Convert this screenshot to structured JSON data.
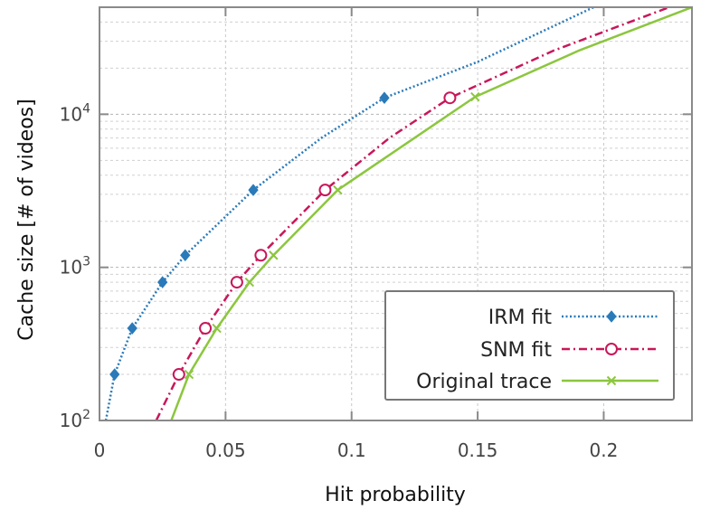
{
  "chart_data": {
    "type": "line",
    "xlabel": "Hit probability",
    "ylabel": "Cache size [# of videos]",
    "xlim": [
      0,
      0.235
    ],
    "ylim": [
      100,
      50000
    ],
    "yscale": "log",
    "grid": true,
    "legend_position": "bottom-right",
    "x_ticks": [
      {
        "value": 0,
        "label": "0"
      },
      {
        "value": 0.05,
        "label": "0.05"
      },
      {
        "value": 0.1,
        "label": "0.1"
      },
      {
        "value": 0.15,
        "label": "0.15"
      },
      {
        "value": 0.2,
        "label": "0.2"
      }
    ],
    "y_ticks": [
      {
        "value": 100,
        "base": "10",
        "exp": "2"
      },
      {
        "value": 1000,
        "base": "10",
        "exp": "3"
      },
      {
        "value": 10000,
        "base": "10",
        "exp": "4"
      }
    ],
    "series": [
      {
        "name": "IRM fit",
        "color": "#2a7ab9",
        "dash": "dotted",
        "marker": "diamond",
        "curve": [
          {
            "x": 0.0025,
            "y": 100
          },
          {
            "x": 0.006,
            "y": 200
          },
          {
            "x": 0.013,
            "y": 400
          },
          {
            "x": 0.025,
            "y": 800
          },
          {
            "x": 0.034,
            "y": 1200
          },
          {
            "x": 0.061,
            "y": 3200
          },
          {
            "x": 0.088,
            "y": 7000
          },
          {
            "x": 0.113,
            "y": 12800
          },
          {
            "x": 0.15,
            "y": 22000
          },
          {
            "x": 0.196,
            "y": 50000
          }
        ],
        "points": [
          {
            "x": 0.006,
            "y": 200
          },
          {
            "x": 0.013,
            "y": 400
          },
          {
            "x": 0.025,
            "y": 800
          },
          {
            "x": 0.034,
            "y": 1200
          },
          {
            "x": 0.061,
            "y": 3200
          },
          {
            "x": 0.113,
            "y": 12800
          }
        ]
      },
      {
        "name": "SNM fit",
        "color": "#c8175a",
        "dash": "dashdot",
        "marker": "circle",
        "curve": [
          {
            "x": 0.0225,
            "y": 100
          },
          {
            "x": 0.0315,
            "y": 200
          },
          {
            "x": 0.042,
            "y": 400
          },
          {
            "x": 0.0545,
            "y": 800
          },
          {
            "x": 0.064,
            "y": 1200
          },
          {
            "x": 0.0895,
            "y": 3200
          },
          {
            "x": 0.115,
            "y": 7000
          },
          {
            "x": 0.139,
            "y": 12800
          },
          {
            "x": 0.18,
            "y": 26000
          },
          {
            "x": 0.226,
            "y": 50000
          }
        ],
        "points": [
          {
            "x": 0.0315,
            "y": 200
          },
          {
            "x": 0.042,
            "y": 400
          },
          {
            "x": 0.0545,
            "y": 800
          },
          {
            "x": 0.064,
            "y": 1200
          },
          {
            "x": 0.0895,
            "y": 3200
          },
          {
            "x": 0.139,
            "y": 12800
          }
        ]
      },
      {
        "name": "Original trace",
        "color": "#8cc63e",
        "dash": "solid",
        "marker": "x",
        "curve": [
          {
            "x": 0.0285,
            "y": 100
          },
          {
            "x": 0.0355,
            "y": 200
          },
          {
            "x": 0.0465,
            "y": 400
          },
          {
            "x": 0.0595,
            "y": 800
          },
          {
            "x": 0.069,
            "y": 1200
          },
          {
            "x": 0.0945,
            "y": 3200
          },
          {
            "x": 0.149,
            "y": 13000
          },
          {
            "x": 0.19,
            "y": 26000
          },
          {
            "x": 0.235,
            "y": 50000
          }
        ],
        "points": [
          {
            "x": 0.0355,
            "y": 200
          },
          {
            "x": 0.0465,
            "y": 400
          },
          {
            "x": 0.0595,
            "y": 800
          },
          {
            "x": 0.069,
            "y": 1200
          },
          {
            "x": 0.0945,
            "y": 3200
          },
          {
            "x": 0.149,
            "y": 13000
          }
        ]
      }
    ]
  }
}
